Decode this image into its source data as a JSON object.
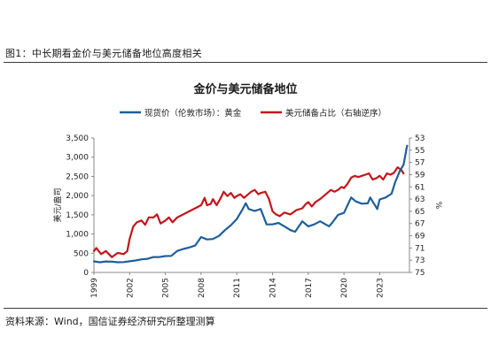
{
  "figure": {
    "caption": "图1：中长期看金价与美元储备地位高度相关",
    "source": "资料来源：Wind，国信证券经济研究所整理测算"
  },
  "colors": {
    "gold": "#1f5f99",
    "reserve": "#c2161b",
    "axis": "#888888",
    "text": "#222222"
  },
  "chart_data": {
    "type": "line",
    "title": "金价与美元储备地位",
    "ylabel": "美元/盎司",
    "y2label": "%",
    "legend_placement": "top",
    "grid": false,
    "x_ticks": [
      "1999",
      "2002",
      "2005",
      "2008",
      "2011",
      "2014",
      "2017",
      "2020",
      "2023"
    ],
    "y_left": {
      "min": 0,
      "max": 3500,
      "ticks": [
        "0",
        "500",
        "1,000",
        "1,500",
        "2,000",
        "2,500",
        "3,000",
        "3,500"
      ]
    },
    "y_right": {
      "min": 53,
      "max": 75,
      "inverted": true,
      "ticks": [
        "53",
        "55",
        "57",
        "59",
        "61",
        "63",
        "65",
        "67",
        "69",
        "71",
        "73",
        "75"
      ]
    },
    "series": [
      {
        "name": "现货价（伦敦市场）：黄金",
        "axis": "left",
        "points": [
          [
            1999.0,
            287
          ],
          [
            1999.5,
            265
          ],
          [
            2000.0,
            285
          ],
          [
            2000.5,
            280
          ],
          [
            2001.0,
            265
          ],
          [
            2001.5,
            270
          ],
          [
            2002.0,
            290
          ],
          [
            2002.5,
            310
          ],
          [
            2003.0,
            340
          ],
          [
            2003.5,
            355
          ],
          [
            2004.0,
            400
          ],
          [
            2004.5,
            400
          ],
          [
            2005.0,
            425
          ],
          [
            2005.5,
            430
          ],
          [
            2006.0,
            560
          ],
          [
            2006.5,
            610
          ],
          [
            2007.0,
            650
          ],
          [
            2007.5,
            700
          ],
          [
            2008.0,
            920
          ],
          [
            2008.5,
            860
          ],
          [
            2009.0,
            870
          ],
          [
            2009.5,
            950
          ],
          [
            2010.0,
            1100
          ],
          [
            2010.5,
            1230
          ],
          [
            2011.0,
            1390
          ],
          [
            2011.5,
            1650
          ],
          [
            2011.75,
            1800
          ],
          [
            2012.0,
            1650
          ],
          [
            2012.5,
            1600
          ],
          [
            2013.0,
            1650
          ],
          [
            2013.5,
            1250
          ],
          [
            2014.0,
            1250
          ],
          [
            2014.5,
            1290
          ],
          [
            2015.0,
            1200
          ],
          [
            2015.5,
            1100
          ],
          [
            2015.9,
            1060
          ],
          [
            2016.5,
            1330
          ],
          [
            2017.0,
            1200
          ],
          [
            2017.5,
            1250
          ],
          [
            2018.0,
            1330
          ],
          [
            2018.75,
            1200
          ],
          [
            2019.0,
            1290
          ],
          [
            2019.5,
            1500
          ],
          [
            2020.0,
            1550
          ],
          [
            2020.6,
            1950
          ],
          [
            2021.0,
            1850
          ],
          [
            2021.5,
            1790
          ],
          [
            2022.0,
            1800
          ],
          [
            2022.2,
            1950
          ],
          [
            2022.8,
            1650
          ],
          [
            2023.0,
            1900
          ],
          [
            2023.5,
            1950
          ],
          [
            2024.0,
            2050
          ],
          [
            2024.3,
            2350
          ],
          [
            2024.7,
            2650
          ],
          [
            2025.0,
            2800
          ],
          [
            2025.3,
            3300
          ]
        ]
      },
      {
        "name": "美元储备占比（右轴逆序）",
        "axis": "right",
        "points": [
          [
            1999.0,
            71.5
          ],
          [
            1999.2,
            71.0
          ],
          [
            1999.6,
            72.0
          ],
          [
            2000.0,
            71.5
          ],
          [
            2000.5,
            72.5
          ],
          [
            2001.0,
            71.8
          ],
          [
            2001.5,
            72.0
          ],
          [
            2001.8,
            71.5
          ],
          [
            2002.0,
            69.5
          ],
          [
            2002.3,
            67.5
          ],
          [
            2002.6,
            66.8
          ],
          [
            2003.0,
            66.5
          ],
          [
            2003.3,
            67.2
          ],
          [
            2003.6,
            66.0
          ],
          [
            2004.0,
            66.0
          ],
          [
            2004.3,
            65.5
          ],
          [
            2004.6,
            67.0
          ],
          [
            2005.0,
            66.5
          ],
          [
            2005.3,
            66.0
          ],
          [
            2005.6,
            66.8
          ],
          [
            2006.0,
            66.0
          ],
          [
            2006.5,
            65.5
          ],
          [
            2007.0,
            65.0
          ],
          [
            2007.5,
            64.5
          ],
          [
            2008.0,
            64.0
          ],
          [
            2008.3,
            62.8
          ],
          [
            2008.5,
            64.0
          ],
          [
            2008.8,
            63.8
          ],
          [
            2009.0,
            63.0
          ],
          [
            2009.3,
            64.0
          ],
          [
            2009.6,
            63.0
          ],
          [
            2009.9,
            61.8
          ],
          [
            2010.2,
            62.5
          ],
          [
            2010.5,
            62.0
          ],
          [
            2010.8,
            62.8
          ],
          [
            2011.0,
            62.5
          ],
          [
            2011.3,
            62.2
          ],
          [
            2011.6,
            62.8
          ],
          [
            2011.9,
            62.3
          ],
          [
            2012.2,
            61.8
          ],
          [
            2012.5,
            61.5
          ],
          [
            2012.8,
            62.2
          ],
          [
            2013.0,
            62.0
          ],
          [
            2013.4,
            61.8
          ],
          [
            2013.7,
            63.0
          ],
          [
            2014.0,
            65.0
          ],
          [
            2014.3,
            65.5
          ],
          [
            2014.6,
            65.8
          ],
          [
            2015.0,
            65.2
          ],
          [
            2015.5,
            65.5
          ],
          [
            2016.0,
            64.8
          ],
          [
            2016.5,
            64.5
          ],
          [
            2016.8,
            63.8
          ],
          [
            2017.0,
            63.5
          ],
          [
            2017.3,
            64.2
          ],
          [
            2017.6,
            63.5
          ],
          [
            2018.0,
            63.0
          ],
          [
            2018.3,
            62.5
          ],
          [
            2018.6,
            62.0
          ],
          [
            2018.9,
            61.5
          ],
          [
            2019.2,
            61.8
          ],
          [
            2019.5,
            61.5
          ],
          [
            2019.8,
            61.0
          ],
          [
            2020.0,
            61.2
          ],
          [
            2020.3,
            60.5
          ],
          [
            2020.6,
            59.5
          ],
          [
            2020.9,
            59.2
          ],
          [
            2021.2,
            59.4
          ],
          [
            2021.5,
            59.2
          ],
          [
            2021.8,
            59.0
          ],
          [
            2022.1,
            58.8
          ],
          [
            2022.4,
            59.8
          ],
          [
            2022.7,
            59.6
          ],
          [
            2023.0,
            59.2
          ],
          [
            2023.3,
            59.8
          ],
          [
            2023.6,
            58.8
          ],
          [
            2023.9,
            59.0
          ],
          [
            2024.2,
            58.7
          ],
          [
            2024.5,
            57.8
          ],
          [
            2024.8,
            58.2
          ],
          [
            2025.0,
            58.8
          ]
        ]
      }
    ]
  }
}
